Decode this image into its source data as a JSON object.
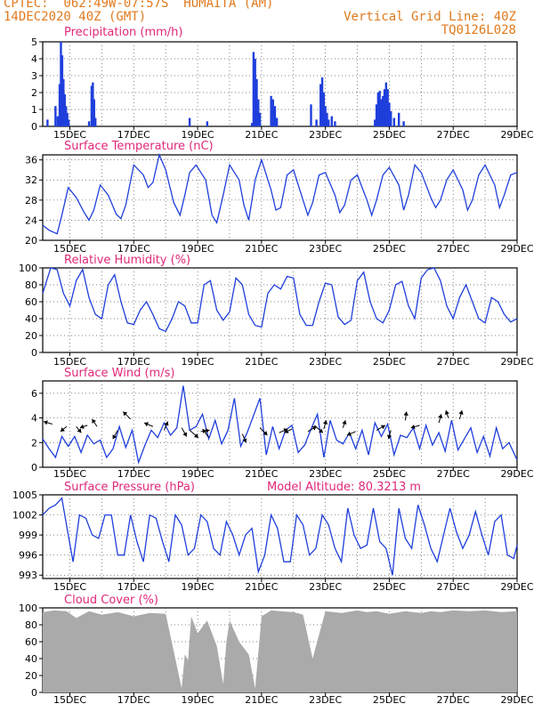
{
  "header": {
    "line1": "CPTEC:  062:49W-07:57S  HUMAITA (AM)",
    "line2": "14DEC2020 40Z (GMT)",
    "right1": "Vertical Grid Line: 40Z",
    "right2": "TQ0126L028"
  },
  "colors": {
    "header": "#e07a1e",
    "title": "#e0287a",
    "series": "#1f3fdc",
    "cloud": "#aaaaaa"
  },
  "chart_data": [
    {
      "type": "bar",
      "title": "Precipitation (mm/h)",
      "ylim": [
        0,
        5
      ],
      "yticks": [
        "0",
        "1",
        "2",
        "3",
        "4",
        "5"
      ],
      "xtick_labels": [
        "15DEC",
        "17DEC",
        "19DEC",
        "21DEC",
        "23DEC",
        "25DEC",
        "27DEC",
        "29DEC"
      ],
      "x_range_days": [
        14.15,
        29.0
      ],
      "bars": [
        [
          14.3,
          0.4
        ],
        [
          14.55,
          1.2
        ],
        [
          14.62,
          0.6
        ],
        [
          14.68,
          2.5
        ],
        [
          14.72,
          5.0
        ],
        [
          14.76,
          4.2
        ],
        [
          14.8,
          2.8
        ],
        [
          14.84,
          1.9
        ],
        [
          14.88,
          1.2
        ],
        [
          14.92,
          0.8
        ],
        [
          14.96,
          0.4
        ],
        [
          15.6,
          0.3
        ],
        [
          15.68,
          2.4
        ],
        [
          15.72,
          2.6
        ],
        [
          15.76,
          1.6
        ],
        [
          15.8,
          0.5
        ],
        [
          18.75,
          0.5
        ],
        [
          19.3,
          0.3
        ],
        [
          20.7,
          0.2
        ],
        [
          20.75,
          4.4
        ],
        [
          20.8,
          4.0
        ],
        [
          20.85,
          2.8
        ],
        [
          20.9,
          1.6
        ],
        [
          20.95,
          0.8
        ],
        [
          21.3,
          1.8
        ],
        [
          21.36,
          1.6
        ],
        [
          21.42,
          1.2
        ],
        [
          21.48,
          0.5
        ],
        [
          22.55,
          1.3
        ],
        [
          22.72,
          0.4
        ],
        [
          22.85,
          2.5
        ],
        [
          22.9,
          2.9
        ],
        [
          22.95,
          2.0
        ],
        [
          23.0,
          1.2
        ],
        [
          23.05,
          0.8
        ],
        [
          23.1,
          0.4
        ],
        [
          23.2,
          0.6
        ],
        [
          23.3,
          0.3
        ],
        [
          24.55,
          0.4
        ],
        [
          24.6,
          1.3
        ],
        [
          24.65,
          2.0
        ],
        [
          24.7,
          2.1
        ],
        [
          24.75,
          1.6
        ],
        [
          24.8,
          1.8
        ],
        [
          24.85,
          2.2
        ],
        [
          24.9,
          2.6
        ],
        [
          24.95,
          2.2
        ],
        [
          25.0,
          1.4
        ],
        [
          25.05,
          0.9
        ],
        [
          25.15,
          0.5
        ],
        [
          25.3,
          0.8
        ],
        [
          25.45,
          0.3
        ]
      ]
    },
    {
      "type": "line",
      "title": "Surface Temperature (nC)",
      "ylim": [
        20,
        37
      ],
      "yticks": [
        "20",
        "24",
        "28",
        "32",
        "36"
      ],
      "xtick_labels": [
        "15DEC",
        "17DEC",
        "19DEC",
        "21DEC",
        "23DEC",
        "25DEC",
        "27DEC",
        "29DEC"
      ],
      "x_range_days": [
        14.15,
        29.0
      ],
      "x": [
        14.15,
        14.35,
        14.6,
        14.75,
        14.95,
        15.2,
        15.45,
        15.6,
        15.75,
        15.95,
        16.2,
        16.45,
        16.6,
        16.75,
        17.0,
        17.3,
        17.45,
        17.6,
        17.8,
        18.0,
        18.25,
        18.45,
        18.6,
        18.75,
        18.95,
        19.25,
        19.45,
        19.6,
        19.8,
        20.0,
        20.3,
        20.45,
        20.6,
        20.8,
        21.0,
        21.3,
        21.45,
        21.6,
        21.8,
        22.0,
        22.3,
        22.45,
        22.6,
        22.8,
        23.0,
        23.3,
        23.45,
        23.6,
        23.8,
        24.0,
        24.3,
        24.45,
        24.6,
        24.8,
        25.0,
        25.3,
        25.45,
        25.6,
        25.8,
        26.0,
        26.3,
        26.45,
        26.6,
        26.8,
        27.0,
        27.3,
        27.45,
        27.6,
        27.8,
        28.0,
        28.3,
        28.45,
        28.6,
        28.8,
        29.0
      ],
      "values": [
        23,
        22,
        21.3,
        25,
        30.5,
        28.5,
        25.5,
        24,
        26,
        31,
        29,
        25.2,
        24.3,
        27,
        35,
        33,
        30.5,
        31.5,
        37,
        34,
        27.5,
        25,
        29,
        33.5,
        35,
        32,
        25,
        23.5,
        29,
        35,
        32,
        27,
        24,
        32,
        36,
        30,
        26,
        26.5,
        33,
        34,
        28,
        25,
        27.5,
        33,
        33.5,
        29,
        25.5,
        27,
        32,
        33,
        28,
        25,
        28,
        33,
        34.5,
        31,
        26,
        29,
        35,
        33.5,
        28.5,
        26.5,
        28,
        32,
        34,
        30,
        26,
        28,
        33,
        35,
        31,
        26.5,
        29,
        33,
        33.5
      ]
    },
    {
      "type": "line",
      "title": "Relative Humidity (%)",
      "ylim": [
        0,
        100
      ],
      "yticks": [
        "0",
        "20",
        "40",
        "60",
        "80",
        "100"
      ],
      "xtick_labels": [
        "15DEC",
        "17DEC",
        "19DEC",
        "21DEC",
        "23DEC",
        "25DEC",
        "27DEC",
        "29DEC"
      ],
      "x_range_days": [
        14.15,
        29.0
      ],
      "x": [
        14.15,
        14.4,
        14.6,
        14.8,
        15.0,
        15.2,
        15.4,
        15.6,
        15.8,
        16.0,
        16.2,
        16.4,
        16.6,
        16.8,
        17.0,
        17.2,
        17.4,
        17.6,
        17.8,
        18.0,
        18.2,
        18.4,
        18.6,
        18.8,
        19.0,
        19.2,
        19.4,
        19.6,
        19.8,
        20.0,
        20.2,
        20.4,
        20.6,
        20.8,
        21.0,
        21.2,
        21.4,
        21.6,
        21.8,
        22.0,
        22.2,
        22.4,
        22.6,
        22.8,
        23.0,
        23.2,
        23.4,
        23.6,
        23.8,
        24.0,
        24.2,
        24.4,
        24.6,
        24.8,
        25.0,
        25.2,
        25.4,
        25.6,
        25.8,
        26.0,
        26.2,
        26.4,
        26.6,
        26.8,
        27.0,
        27.2,
        27.4,
        27.6,
        27.8,
        28.0,
        28.2,
        28.4,
        28.6,
        28.8,
        29.0
      ],
      "values": [
        70,
        100,
        98,
        70,
        55,
        85,
        98,
        65,
        45,
        40,
        80,
        92,
        60,
        35,
        33,
        50,
        60,
        45,
        28,
        25,
        40,
        60,
        55,
        35,
        35,
        80,
        85,
        50,
        38,
        48,
        88,
        80,
        45,
        32,
        30,
        70,
        80,
        75,
        90,
        88,
        45,
        32,
        32,
        60,
        82,
        80,
        42,
        33,
        38,
        85,
        95,
        60,
        40,
        35,
        50,
        80,
        84,
        55,
        40,
        88,
        98,
        100,
        85,
        55,
        40,
        65,
        80,
        60,
        40,
        35,
        65,
        60,
        45,
        36,
        40
      ]
    },
    {
      "type": "line",
      "title": "Surface Wind (m/s)",
      "ylim": [
        0,
        7
      ],
      "yticks": [
        "0",
        "2",
        "4",
        "6"
      ],
      "xtick_labels": [
        "15DEC",
        "17DEC",
        "19DEC",
        "21DEC",
        "23DEC",
        "25DEC",
        "27DEC",
        "29DEC"
      ],
      "x_range_days": [
        14.15,
        29.0
      ],
      "x": [
        14.15,
        14.35,
        14.55,
        14.75,
        14.95,
        15.15,
        15.35,
        15.55,
        15.75,
        15.95,
        16.15,
        16.35,
        16.55,
        16.75,
        16.95,
        17.15,
        17.35,
        17.55,
        17.75,
        17.95,
        18.15,
        18.35,
        18.55,
        18.75,
        18.95,
        19.15,
        19.35,
        19.55,
        19.75,
        19.95,
        20.15,
        20.35,
        20.55,
        20.75,
        20.95,
        21.15,
        21.35,
        21.55,
        21.75,
        21.95,
        22.15,
        22.35,
        22.55,
        22.75,
        22.95,
        23.15,
        23.35,
        23.55,
        23.75,
        23.95,
        24.15,
        24.35,
        24.55,
        24.75,
        24.95,
        25.15,
        25.35,
        25.55,
        25.75,
        25.95,
        26.15,
        26.35,
        26.55,
        26.75,
        26.95,
        27.15,
        27.35,
        27.55,
        27.75,
        27.95,
        28.15,
        28.35,
        28.55,
        28.75,
        29.0
      ],
      "values": [
        2.3,
        1.5,
        0.8,
        2.5,
        1.7,
        2.5,
        1.2,
        2.6,
        1.9,
        2.2,
        0.8,
        1.5,
        3.3,
        1.6,
        3.0,
        0.4,
        1.8,
        3.0,
        2.4,
        3.6,
        2.6,
        3.2,
        6.6,
        3.0,
        3.3,
        4.3,
        2.3,
        3.8,
        1.9,
        3.0,
        5.6,
        1.7,
        2.8,
        4.2,
        5.6,
        1.0,
        3.3,
        1.5,
        3.0,
        3.4,
        1.2,
        1.8,
        3.1,
        4.3,
        0.8,
        3.8,
        2.2,
        1.9,
        2.8,
        1.5,
        3.0,
        1.0,
        3.6,
        2.5,
        3.5,
        1.0,
        2.6,
        2.4,
        3.2,
        1.5,
        3.4,
        1.8,
        2.8,
        1.3,
        3.8,
        1.4,
        2.3,
        3.2,
        1.2,
        2.5,
        0.9,
        3.2,
        1.5,
        2.0,
        0.6
      ],
      "arrows": [
        [
          14.45,
          3.5,
          -0.35,
          0.1
        ],
        [
          14.9,
          3.3,
          -0.25,
          -0.2
        ],
        [
          15.2,
          3.3,
          0.2,
          -0.25
        ],
        [
          15.55,
          3.4,
          -0.3,
          -0.1
        ],
        [
          15.85,
          3.3,
          -0.2,
          0.3
        ],
        [
          16.5,
          3.0,
          -0.2,
          -0.35
        ],
        [
          16.9,
          3.9,
          -0.3,
          0.3
        ],
        [
          17.6,
          3.3,
          -0.35,
          0.15
        ],
        [
          17.95,
          3.0,
          0.15,
          0.35
        ],
        [
          18.5,
          3.2,
          0.2,
          -0.35
        ],
        [
          18.75,
          3.0,
          0.35,
          -0.3
        ],
        [
          19.1,
          2.9,
          0.35,
          0.05
        ],
        [
          19.35,
          2.4,
          -0.25,
          0.35
        ],
        [
          20.4,
          2.7,
          0.15,
          -0.35
        ],
        [
          20.95,
          3.2,
          0.3,
          -0.3
        ],
        [
          21.55,
          2.8,
          0.35,
          0.15
        ],
        [
          21.95,
          3.1,
          -0.3,
          -0.15
        ],
        [
          22.45,
          2.9,
          0.35,
          0.2
        ],
        [
          22.65,
          3.4,
          0.35,
          -0.3
        ],
        [
          22.95,
          3.1,
          0.1,
          0.35
        ],
        [
          23.55,
          3.2,
          0.1,
          0.3
        ],
        [
          23.95,
          2.9,
          -0.35,
          -0.15
        ],
        [
          24.6,
          3.0,
          0.35,
          0.2
        ],
        [
          25.05,
          3.0,
          -0.1,
          -0.35
        ],
        [
          25.5,
          3.8,
          0.05,
          0.35
        ],
        [
          25.95,
          3.4,
          -0.35,
          -0.1
        ],
        [
          26.55,
          3.6,
          0.1,
          0.35
        ],
        [
          26.85,
          4.0,
          -0.1,
          0.3
        ],
        [
          27.2,
          3.9,
          0.1,
          0.35
        ]
      ]
    },
    {
      "type": "line",
      "title": "Surface Pressure (hPa)",
      "annotation": "Model Altitude: 80.3213 m",
      "ylim": [
        992.5,
        1005
      ],
      "yticks": [
        "993",
        "996",
        "999",
        "1002",
        "1005"
      ],
      "xtick_labels": [
        "15DEC",
        "17DEC",
        "19DEC",
        "21DEC",
        "23DEC",
        "25DEC",
        "27DEC",
        "29DEC"
      ],
      "x_range_days": [
        14.15,
        29.0
      ],
      "x": [
        14.15,
        14.35,
        14.55,
        14.75,
        14.95,
        15.1,
        15.3,
        15.5,
        15.7,
        15.9,
        16.1,
        16.3,
        16.5,
        16.7,
        16.9,
        17.1,
        17.3,
        17.5,
        17.7,
        17.9,
        18.1,
        18.3,
        18.5,
        18.7,
        18.9,
        19.1,
        19.3,
        19.5,
        19.7,
        19.9,
        20.1,
        20.3,
        20.5,
        20.7,
        20.9,
        21.1,
        21.3,
        21.5,
        21.7,
        21.9,
        22.1,
        22.3,
        22.5,
        22.7,
        22.9,
        23.1,
        23.3,
        23.5,
        23.7,
        23.9,
        24.1,
        24.3,
        24.5,
        24.7,
        24.9,
        25.1,
        25.3,
        25.5,
        25.7,
        25.9,
        26.1,
        26.3,
        26.5,
        26.7,
        26.9,
        27.1,
        27.3,
        27.5,
        27.7,
        27.9,
        28.1,
        28.3,
        28.5,
        28.7,
        28.9,
        29.0
      ],
      "values": [
        1002,
        1003,
        1003.5,
        1004.5,
        999,
        995,
        1002,
        1001.5,
        999,
        998.5,
        1002,
        1002,
        996,
        996,
        1002,
        998,
        995,
        1002,
        1001.5,
        998,
        995,
        1002,
        1000.5,
        996,
        997,
        1002,
        1001,
        997,
        996,
        1001,
        999,
        996,
        999,
        1000,
        993.5,
        996,
        1002,
        1000,
        995,
        995,
        1002,
        1000.5,
        996,
        997,
        1002,
        1000.5,
        997,
        995,
        1003,
        999,
        997,
        997.5,
        1003,
        998,
        997,
        993,
        1003,
        998.5,
        997,
        1003.5,
        1000.5,
        997,
        995,
        999,
        1003,
        999.5,
        997,
        999,
        1002.5,
        999,
        996,
        1001,
        1002,
        996,
        995.5,
        997.5
      ]
    },
    {
      "type": "area",
      "title": "Cloud Cover (%)",
      "ylim": [
        0,
        100
      ],
      "yticks": [
        "0",
        "20",
        "40",
        "60",
        "80",
        "100"
      ],
      "xtick_labels": [
        "15DEC",
        "17DEC",
        "19DEC",
        "21DEC",
        "23DEC",
        "25DEC",
        "27DEC",
        "29DEC"
      ],
      "x_range_days": [
        14.15,
        29.0
      ],
      "x": [
        14.15,
        14.5,
        14.9,
        15.2,
        15.6,
        16.0,
        16.5,
        17.0,
        17.5,
        18.0,
        18.5,
        18.6,
        18.7,
        18.8,
        19.0,
        19.3,
        19.6,
        19.8,
        19.9,
        20.0,
        20.3,
        20.6,
        20.8,
        21.0,
        21.3,
        21.6,
        22.0,
        22.3,
        22.6,
        23.0,
        23.5,
        24.0,
        24.3,
        24.6,
        25.0,
        25.5,
        26.0,
        26.3,
        26.6,
        27.0,
        27.5,
        28.0,
        28.5,
        29.0
      ],
      "values": [
        95,
        97,
        96,
        88,
        96,
        92,
        95,
        90,
        94,
        93,
        5,
        45,
        38,
        90,
        70,
        85,
        55,
        10,
        60,
        85,
        60,
        45,
        5,
        90,
        97,
        96,
        95,
        92,
        40,
        96,
        94,
        97,
        95,
        96,
        93,
        96,
        94,
        96,
        95,
        97,
        96,
        97,
        95,
        96
      ]
    }
  ]
}
